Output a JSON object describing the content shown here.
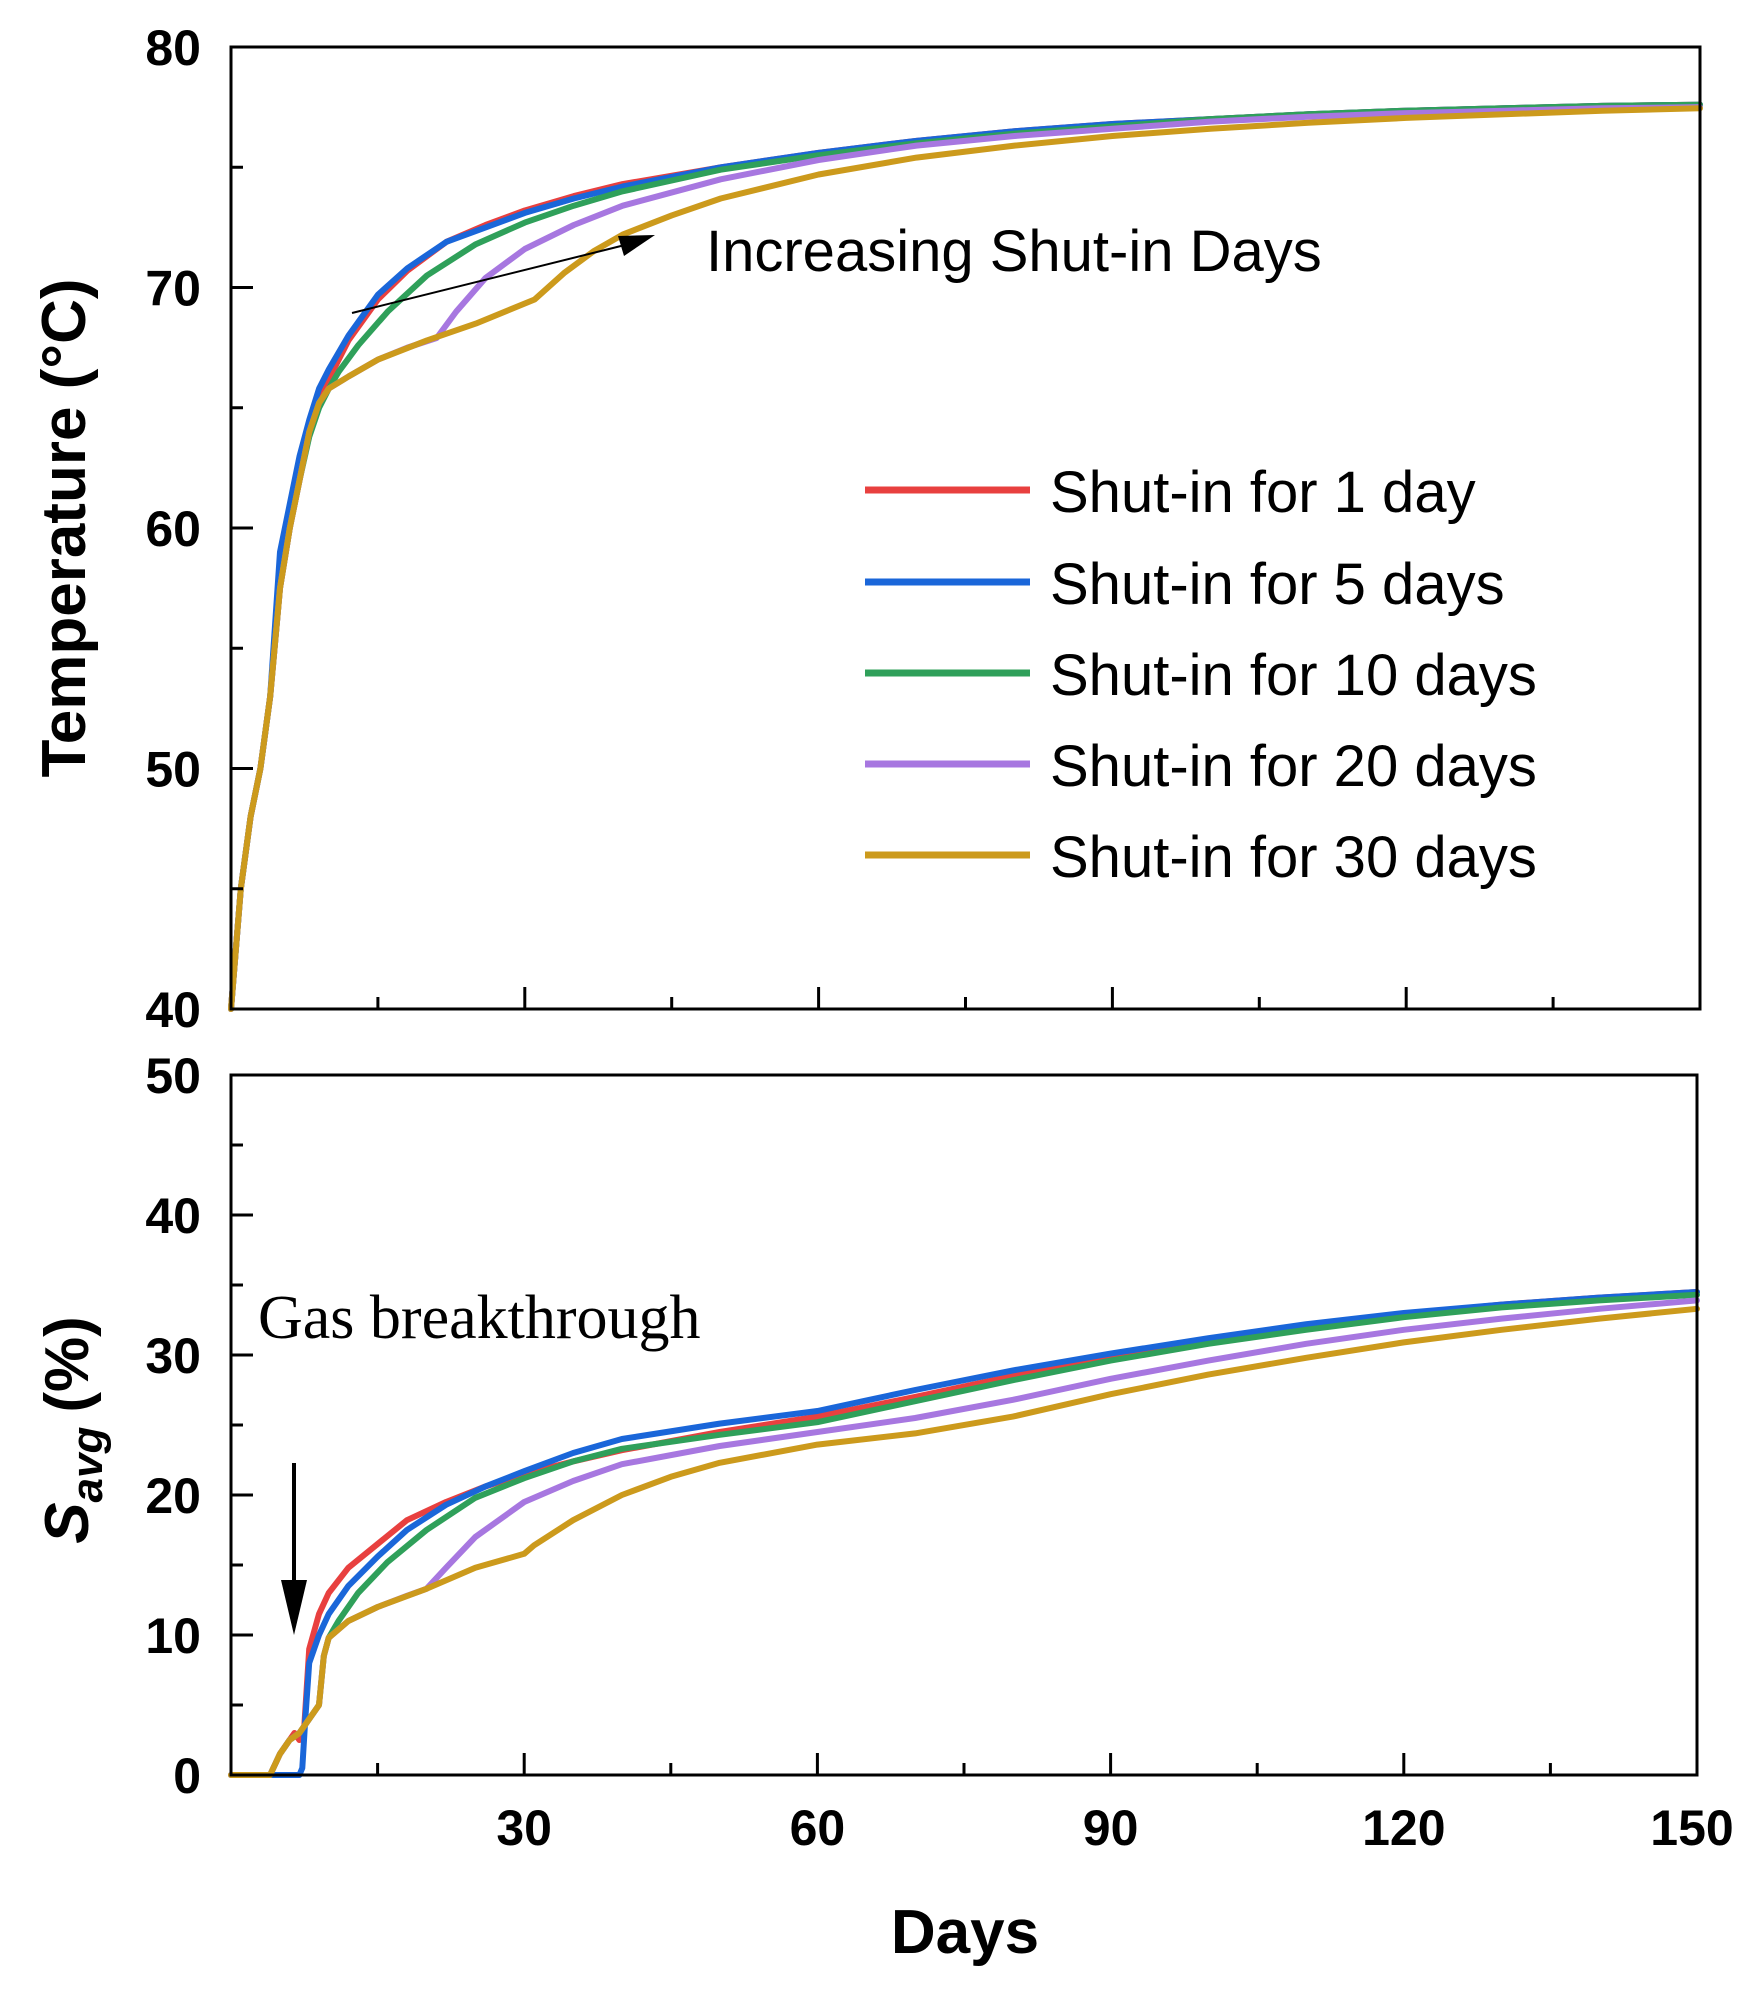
{
  "chart_data": [
    {
      "type": "line",
      "panel": "top",
      "title": "",
      "xlabel": "",
      "ylabel": "Temperature (°C)",
      "xlim": [
        0,
        150
      ],
      "ylim": [
        40,
        80
      ],
      "xticks": [
        30,
        60,
        90,
        120,
        150
      ],
      "yticks": [
        40,
        50,
        60,
        70,
        80
      ],
      "grid": false,
      "legend_position": "center-right",
      "annotation": "Increasing Shut-in Days",
      "series": [
        {
          "name": "Shut-in for 1 day",
          "color": "#e8403f",
          "x": [
            0,
            1,
            2,
            3,
            4,
            5,
            6,
            7,
            8,
            9,
            10,
            12,
            15,
            18,
            22,
            26,
            30,
            35,
            40,
            50,
            60,
            70,
            80,
            90,
            100,
            110,
            120,
            130,
            140,
            150
          ],
          "y": [
            40,
            45,
            48,
            50,
            53,
            57.5,
            60,
            62,
            64,
            65.2,
            66.2,
            67.8,
            69.5,
            70.7,
            71.9,
            72.6,
            73.2,
            73.8,
            74.3,
            75.0,
            75.6,
            76.1,
            76.5,
            76.8,
            77.0,
            77.2,
            77.35,
            77.45,
            77.55,
            77.6
          ]
        },
        {
          "name": "Shut-in for 5 days",
          "color": "#1a66d9",
          "x": [
            0,
            1,
            2,
            3,
            4,
            5,
            6,
            7,
            8,
            9,
            10,
            12,
            15,
            18,
            22,
            26,
            30,
            35,
            40,
            50,
            60,
            70,
            80,
            90,
            100,
            110,
            120,
            130,
            140,
            150
          ],
          "y": [
            40,
            45,
            48,
            50,
            53,
            59,
            61,
            63,
            64.5,
            65.8,
            66.6,
            68.0,
            69.7,
            70.8,
            71.9,
            72.5,
            73.1,
            73.7,
            74.2,
            75.0,
            75.6,
            76.1,
            76.5,
            76.8,
            77.0,
            77.2,
            77.35,
            77.45,
            77.55,
            77.6
          ]
        },
        {
          "name": "Shut-in for 10 days",
          "color": "#2fa05a",
          "x": [
            0,
            1,
            2,
            3,
            4,
            5,
            6,
            7,
            8,
            9,
            10,
            11,
            13,
            16,
            20,
            25,
            30,
            35,
            40,
            50,
            60,
            70,
            80,
            90,
            100,
            110,
            120,
            130,
            140,
            150
          ],
          "y": [
            40,
            45,
            48,
            50,
            53,
            57.5,
            60,
            62,
            63.8,
            65,
            65.8,
            66.5,
            67.6,
            69.0,
            70.5,
            71.8,
            72.7,
            73.4,
            74.0,
            74.9,
            75.5,
            76.0,
            76.4,
            76.7,
            77.0,
            77.2,
            77.35,
            77.45,
            77.55,
            77.6
          ]
        },
        {
          "name": "Shut-in for 20 days",
          "color": "#a777e0",
          "x": [
            0,
            1,
            2,
            3,
            4,
            5,
            6,
            7,
            8,
            9,
            10,
            12,
            15,
            18,
            21,
            23,
            26,
            30,
            35,
            40,
            50,
            60,
            70,
            80,
            90,
            100,
            110,
            120,
            130,
            140,
            150
          ],
          "y": [
            40,
            45,
            48,
            50,
            53,
            57.5,
            60,
            62,
            64,
            65.2,
            65.8,
            66.3,
            67.0,
            67.5,
            67.9,
            69.0,
            70.4,
            71.6,
            72.6,
            73.4,
            74.5,
            75.3,
            75.9,
            76.3,
            76.6,
            76.9,
            77.1,
            77.25,
            77.35,
            77.45,
            77.5
          ]
        },
        {
          "name": "Shut-in for 30 days",
          "color": "#cc9a1c",
          "x": [
            0,
            1,
            2,
            3,
            4,
            5,
            6,
            7,
            8,
            9,
            10,
            12,
            15,
            20,
            25,
            31,
            34,
            37,
            40,
            45,
            50,
            60,
            70,
            80,
            90,
            100,
            110,
            120,
            130,
            140,
            150
          ],
          "y": [
            40,
            45,
            48,
            50,
            53,
            57.5,
            60,
            62,
            64,
            65.2,
            65.8,
            66.3,
            67.0,
            67.8,
            68.5,
            69.5,
            70.6,
            71.5,
            72.2,
            73.0,
            73.7,
            74.7,
            75.4,
            75.9,
            76.3,
            76.6,
            76.85,
            77.05,
            77.2,
            77.35,
            77.45
          ]
        }
      ]
    },
    {
      "type": "line",
      "panel": "bottom",
      "title": "",
      "xlabel": "Days",
      "ylabel": "S",
      "ylabel_subscript": "avg",
      "ylabel_unit": "(%)",
      "xlim": [
        0,
        150
      ],
      "ylim": [
        0,
        50
      ],
      "xticks": [
        30,
        60,
        90,
        120,
        150
      ],
      "yticks": [
        0,
        10,
        20,
        30,
        40,
        50
      ],
      "grid": false,
      "annotation": "Gas breakthrough",
      "series": [
        {
          "name": "Shut-in for 1 day",
          "color": "#e8403f",
          "x": [
            0,
            4,
            5,
            6,
            6.5,
            7,
            7.5,
            8,
            9,
            10,
            12,
            15,
            18,
            22,
            26,
            30,
            35,
            40,
            50,
            60,
            70,
            80,
            90,
            100,
            110,
            120,
            130,
            140,
            150
          ],
          "y": [
            0,
            0,
            1.5,
            2.5,
            3,
            2.5,
            3.5,
            9,
            11.5,
            13,
            14.8,
            16.5,
            18.2,
            19.5,
            20.6,
            21.5,
            22.4,
            23.2,
            24.5,
            25.6,
            27.0,
            28.5,
            29.8,
            31.0,
            32.0,
            32.9,
            33.6,
            34.1,
            34.5
          ]
        },
        {
          "name": "Shut-in for 5 days",
          "color": "#1a66d9",
          "x": [
            0,
            4,
            6,
            7,
            7.3,
            7.6,
            8,
            9,
            10,
            12,
            15,
            18,
            22,
            26,
            30,
            35,
            40,
            50,
            60,
            70,
            80,
            90,
            100,
            110,
            120,
            130,
            140,
            150
          ],
          "y": [
            0,
            0,
            0,
            0,
            0.5,
            4,
            8,
            10,
            11.5,
            13.5,
            15.6,
            17.5,
            19.3,
            20.6,
            21.7,
            23.0,
            24.0,
            25.1,
            26.0,
            27.5,
            28.9,
            30.1,
            31.2,
            32.2,
            33.0,
            33.6,
            34.1,
            34.5
          ]
        },
        {
          "name": "Shut-in for 10 days",
          "color": "#2fa05a",
          "x": [
            0,
            4,
            5,
            6,
            7,
            8,
            9,
            9.5,
            10,
            11,
            13,
            16,
            20,
            25,
            30,
            35,
            40,
            50,
            60,
            70,
            80,
            90,
            100,
            110,
            120,
            130,
            140,
            150
          ],
          "y": [
            0,
            0,
            1.5,
            2.5,
            3,
            4,
            5,
            8.5,
            9.8,
            11,
            13,
            15.2,
            17.5,
            19.8,
            21.2,
            22.4,
            23.3,
            24.3,
            25.2,
            26.7,
            28.2,
            29.6,
            30.8,
            31.8,
            32.7,
            33.4,
            33.9,
            34.3
          ]
        },
        {
          "name": "Shut-in for 20 days",
          "color": "#a777e0",
          "x": [
            0,
            4,
            5,
            6,
            7,
            8,
            9,
            9.5,
            10,
            12,
            15,
            18,
            20,
            22,
            25,
            30,
            35,
            40,
            50,
            60,
            70,
            80,
            90,
            100,
            110,
            120,
            130,
            140,
            150
          ],
          "y": [
            0,
            0,
            1.5,
            2.5,
            3,
            4,
            5,
            8.5,
            9.8,
            11,
            12,
            12.8,
            13.3,
            14.8,
            17.0,
            19.5,
            21.0,
            22.2,
            23.5,
            24.5,
            25.5,
            26.8,
            28.3,
            29.6,
            30.8,
            31.8,
            32.6,
            33.3,
            33.9
          ]
        },
        {
          "name": "Shut-in for 30 days",
          "color": "#cc9a1c",
          "x": [
            0,
            4,
            5,
            6,
            7,
            8,
            9,
            9.5,
            10,
            12,
            15,
            20,
            25,
            30,
            31,
            35,
            40,
            45,
            50,
            60,
            70,
            80,
            90,
            100,
            110,
            120,
            130,
            140,
            150
          ],
          "y": [
            0,
            0,
            1.5,
            2.5,
            3,
            4,
            5,
            8.5,
            9.8,
            11,
            12,
            13.3,
            14.8,
            15.8,
            16.4,
            18.2,
            20.0,
            21.3,
            22.3,
            23.6,
            24.4,
            25.6,
            27.2,
            28.6,
            29.8,
            30.9,
            31.8,
            32.6,
            33.3
          ]
        }
      ]
    }
  ]
}
